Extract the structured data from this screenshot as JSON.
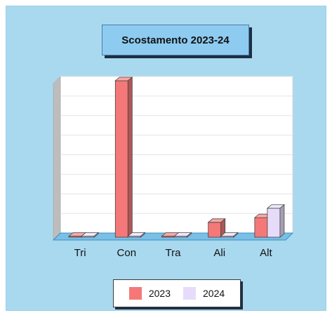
{
  "chart_data": {
    "type": "bar",
    "title": "Scostamento 2023-24",
    "categories": [
      "Tri",
      "Con",
      "Tra",
      "Ali",
      "Alt"
    ],
    "series": [
      {
        "name": "2023",
        "values": [
          0.2,
          100,
          0.2,
          9.5,
          12.5
        ],
        "color": "#f57878"
      },
      {
        "name": "2024",
        "values": [
          0.2,
          0.5,
          0.2,
          0.2,
          18.5
        ],
        "color": "#e6dcfa"
      }
    ],
    "ylim": [
      0,
      100
    ],
    "grid": true,
    "legend": "bottom"
  }
}
